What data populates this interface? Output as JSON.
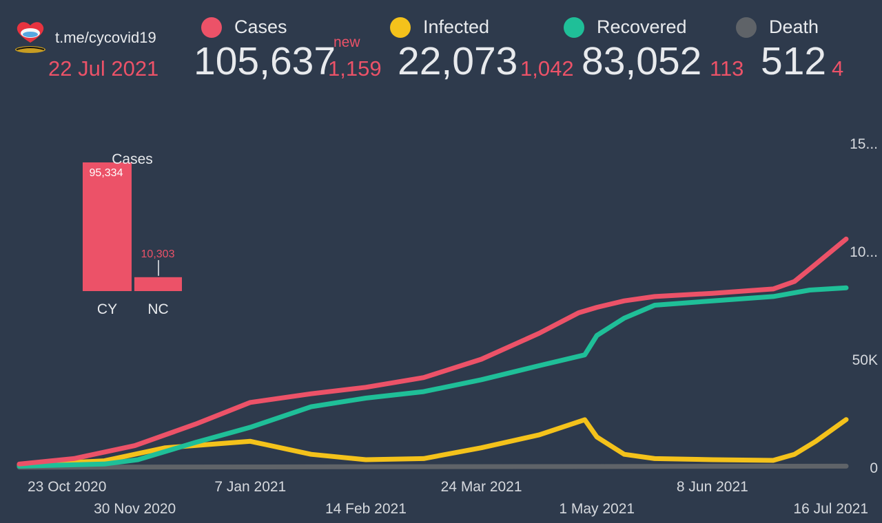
{
  "header": {
    "channel": "t.me/cycovid19",
    "date": "22 Jul 2021",
    "new_label": "new",
    "stats": [
      {
        "label": "Cases",
        "value": "105,637",
        "delta": "1,159",
        "color": "#ec5268"
      },
      {
        "label": "Infected",
        "value": "22,073",
        "delta": "1,042",
        "color": "#f4c21b"
      },
      {
        "label": "Recovered",
        "value": "83,052",
        "delta": "113",
        "color": "#1fbf98"
      },
      {
        "label": "Death",
        "value": "512",
        "delta": "4",
        "color": "#5f6368"
      }
    ]
  },
  "chart_data": [
    {
      "type": "line",
      "x_ticks": [
        "23 Oct 2020",
        "30 Nov 2020",
        "7 Jan 2021",
        "14 Feb 2021",
        "24 Mar 2021",
        "1 May 2021",
        "8 Jun 2021",
        "16 Jul 2021"
      ],
      "y_ticks": [
        "0",
        "50K",
        "10...",
        "15..."
      ],
      "ylim": [
        0,
        150000
      ],
      "grid": false,
      "series": [
        {
          "name": "Cases",
          "color": "#ec5268",
          "x": [
            "2020-10-23",
            "2020-11-10",
            "2020-11-30",
            "2020-12-20",
            "2021-01-07",
            "2021-01-27",
            "2021-02-14",
            "2021-03-05",
            "2021-03-24",
            "2021-04-12",
            "2021-04-25",
            "2021-05-01",
            "2021-05-10",
            "2021-05-20",
            "2021-06-08",
            "2021-06-28",
            "2021-07-05",
            "2021-07-12",
            "2021-07-22"
          ],
          "values": [
            1500,
            4000,
            10000,
            20000,
            30000,
            34000,
            37000,
            41500,
            50000,
            62000,
            71500,
            74000,
            77000,
            79000,
            80500,
            82500,
            86000,
            94000,
            105637
          ]
        },
        {
          "name": "Recovered",
          "color": "#1fbf98",
          "x": [
            "2020-10-23",
            "2020-11-20",
            "2020-12-01",
            "2020-12-20",
            "2021-01-07",
            "2021-01-27",
            "2021-02-14",
            "2021-03-05",
            "2021-03-24",
            "2021-04-12",
            "2021-04-27",
            "2021-05-01",
            "2021-05-10",
            "2021-05-20",
            "2021-06-08",
            "2021-06-28",
            "2021-07-10",
            "2021-07-22"
          ],
          "values": [
            500,
            1500,
            3500,
            11500,
            18500,
            28000,
            32000,
            35000,
            40500,
            47000,
            52000,
            61000,
            69000,
            75000,
            77000,
            79000,
            82000,
            83052
          ]
        },
        {
          "name": "Infected",
          "color": "#f4c21b",
          "x": [
            "2020-10-23",
            "2020-11-20",
            "2020-12-10",
            "2021-01-07",
            "2021-01-27",
            "2021-02-14",
            "2021-03-05",
            "2021-03-24",
            "2021-04-12",
            "2021-04-27",
            "2021-05-01",
            "2021-05-10",
            "2021-05-20",
            "2021-06-08",
            "2021-06-28",
            "2021-07-05",
            "2021-07-12",
            "2021-07-22"
          ],
          "values": [
            1000,
            3000,
            9000,
            12000,
            6000,
            3500,
            4000,
            9000,
            15000,
            22000,
            14000,
            6000,
            4000,
            3500,
            3200,
            6000,
            12000,
            22073
          ]
        },
        {
          "name": "Death",
          "color": "#5f6368",
          "x": [
            "2020-10-23",
            "2021-07-22"
          ],
          "values": [
            20,
            512
          ]
        }
      ]
    },
    {
      "type": "bar",
      "title": "Cases",
      "categories": [
        "CY",
        "NC"
      ],
      "values": [
        95334,
        10303
      ],
      "value_labels": [
        "95,334",
        "10,303"
      ],
      "color": "#ec5268"
    }
  ]
}
